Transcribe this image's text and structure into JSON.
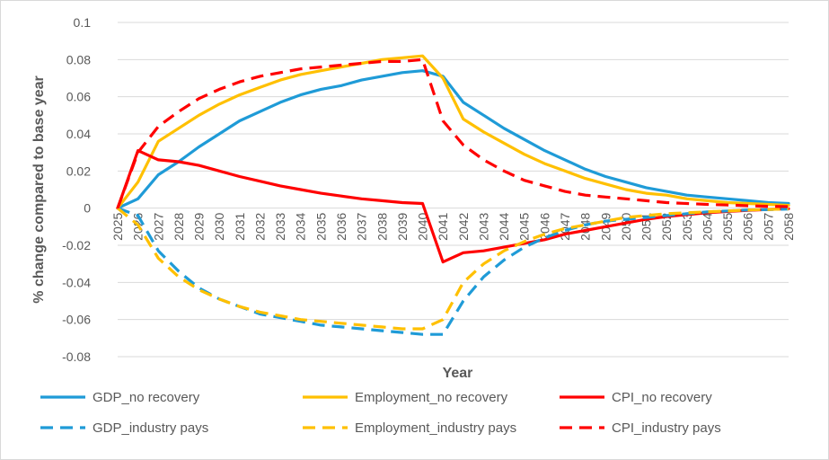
{
  "chart_data": {
    "type": "line",
    "xlabel": "Year",
    "ylabel": "% change compared to base year",
    "ylim": [
      -0.08,
      0.1
    ],
    "yticks": [
      0.1,
      0.08,
      0.06,
      0.04,
      0.02,
      0,
      -0.02,
      -0.04,
      -0.06,
      -0.08
    ],
    "ytick_labels": [
      "0.1",
      "0.08",
      "0.06",
      "0.04",
      "0.02",
      "0",
      "-0.02",
      "-0.04",
      "-0.06",
      "-0.08"
    ],
    "grid": "horizontal",
    "legend_position": "bottom",
    "x": [
      2025,
      2026,
      2027,
      2028,
      2029,
      2030,
      2031,
      2032,
      2033,
      2034,
      2035,
      2036,
      2037,
      2038,
      2039,
      2040,
      2041,
      2042,
      2043,
      2044,
      2045,
      2046,
      2047,
      2048,
      2049,
      2050,
      2051,
      2052,
      2053,
      2054,
      2055,
      2056,
      2057,
      2058
    ],
    "x_labels": [
      "2025",
      "2026",
      "2027",
      "2028",
      "2029",
      "2030",
      "2031",
      "2032",
      "2033",
      "2034",
      "2035",
      "2036",
      "2037",
      "2038",
      "2039",
      "2040",
      "2041",
      "2042",
      "2043",
      "2044",
      "2045",
      "2046",
      "2047",
      "2048",
      "2049",
      "2050",
      "2051",
      "2052",
      "2053",
      "2054",
      "2055",
      "2056",
      "2057",
      "2058"
    ],
    "series": [
      {
        "name": "GDP_no recovery",
        "color": "#1f9bd7",
        "dash": "solid",
        "values": [
          0,
          0.005,
          0.018,
          0.025,
          0.033,
          0.04,
          0.047,
          0.052,
          0.057,
          0.061,
          0.064,
          0.066,
          0.069,
          0.071,
          0.073,
          0.074,
          0.071,
          0.057,
          0.05,
          0.043,
          0.037,
          0.031,
          0.026,
          0.021,
          0.017,
          0.014,
          0.011,
          0.009,
          0.007,
          0.006,
          0.005,
          0.004,
          0.003,
          0.0025
        ]
      },
      {
        "name": "Employment_no recovery",
        "color": "#ffc000",
        "dash": "solid",
        "values": [
          0,
          0.014,
          0.036,
          0.043,
          0.05,
          0.056,
          0.061,
          0.065,
          0.069,
          0.072,
          0.074,
          0.076,
          0.078,
          0.08,
          0.081,
          0.082,
          0.07,
          0.048,
          0.041,
          0.035,
          0.029,
          0.024,
          0.02,
          0.016,
          0.013,
          0.01,
          0.008,
          0.007,
          0.005,
          0.004,
          0.003,
          0.0025,
          0.002,
          0.0015
        ]
      },
      {
        "name": "CPI_no recovery",
        "color": "#ff0000",
        "dash": "solid",
        "values": [
          0,
          0.031,
          0.026,
          0.025,
          0.023,
          0.02,
          0.017,
          0.0145,
          0.012,
          0.01,
          0.008,
          0.0065,
          0.005,
          0.004,
          0.003,
          0.0025,
          -0.029,
          -0.024,
          -0.023,
          -0.021,
          -0.019,
          -0.017,
          -0.014,
          -0.012,
          -0.01,
          -0.008,
          -0.006,
          -0.0045,
          -0.0035,
          -0.0025,
          -0.0018,
          -0.0012,
          -0.0007,
          -0.0003
        ]
      },
      {
        "name": "GDP_industry pays",
        "color": "#1f9bd7",
        "dash": "dashed",
        "values": [
          0,
          -0.004,
          -0.023,
          -0.034,
          -0.043,
          -0.049,
          -0.053,
          -0.057,
          -0.059,
          -0.061,
          -0.063,
          -0.064,
          -0.065,
          -0.066,
          -0.067,
          -0.068,
          -0.068,
          -0.05,
          -0.037,
          -0.028,
          -0.021,
          -0.016,
          -0.012,
          -0.009,
          -0.007,
          -0.006,
          -0.005,
          -0.004,
          -0.003,
          -0.002,
          -0.0015,
          -0.001,
          -0.0008,
          -0.0005
        ]
      },
      {
        "name": "Employment_industry pays",
        "color": "#ffc000",
        "dash": "dashed",
        "values": [
          0,
          -0.009,
          -0.027,
          -0.037,
          -0.044,
          -0.049,
          -0.053,
          -0.056,
          -0.058,
          -0.06,
          -0.061,
          -0.062,
          -0.063,
          -0.064,
          -0.065,
          -0.065,
          -0.06,
          -0.04,
          -0.03,
          -0.023,
          -0.018,
          -0.014,
          -0.011,
          -0.009,
          -0.007,
          -0.005,
          -0.004,
          -0.003,
          -0.0025,
          -0.002,
          -0.0015,
          -0.001,
          -0.0007,
          -0.0004
        ]
      },
      {
        "name": "CPI_industry pays",
        "color": "#ff0000",
        "dash": "dashed",
        "values": [
          0,
          0.03,
          0.044,
          0.052,
          0.059,
          0.064,
          0.068,
          0.071,
          0.073,
          0.075,
          0.076,
          0.077,
          0.078,
          0.079,
          0.079,
          0.08,
          0.047,
          0.034,
          0.026,
          0.02,
          0.015,
          0.012,
          0.009,
          0.007,
          0.006,
          0.005,
          0.004,
          0.003,
          0.0025,
          0.002,
          0.0017,
          0.0013,
          0.001,
          0.0008
        ]
      }
    ]
  }
}
